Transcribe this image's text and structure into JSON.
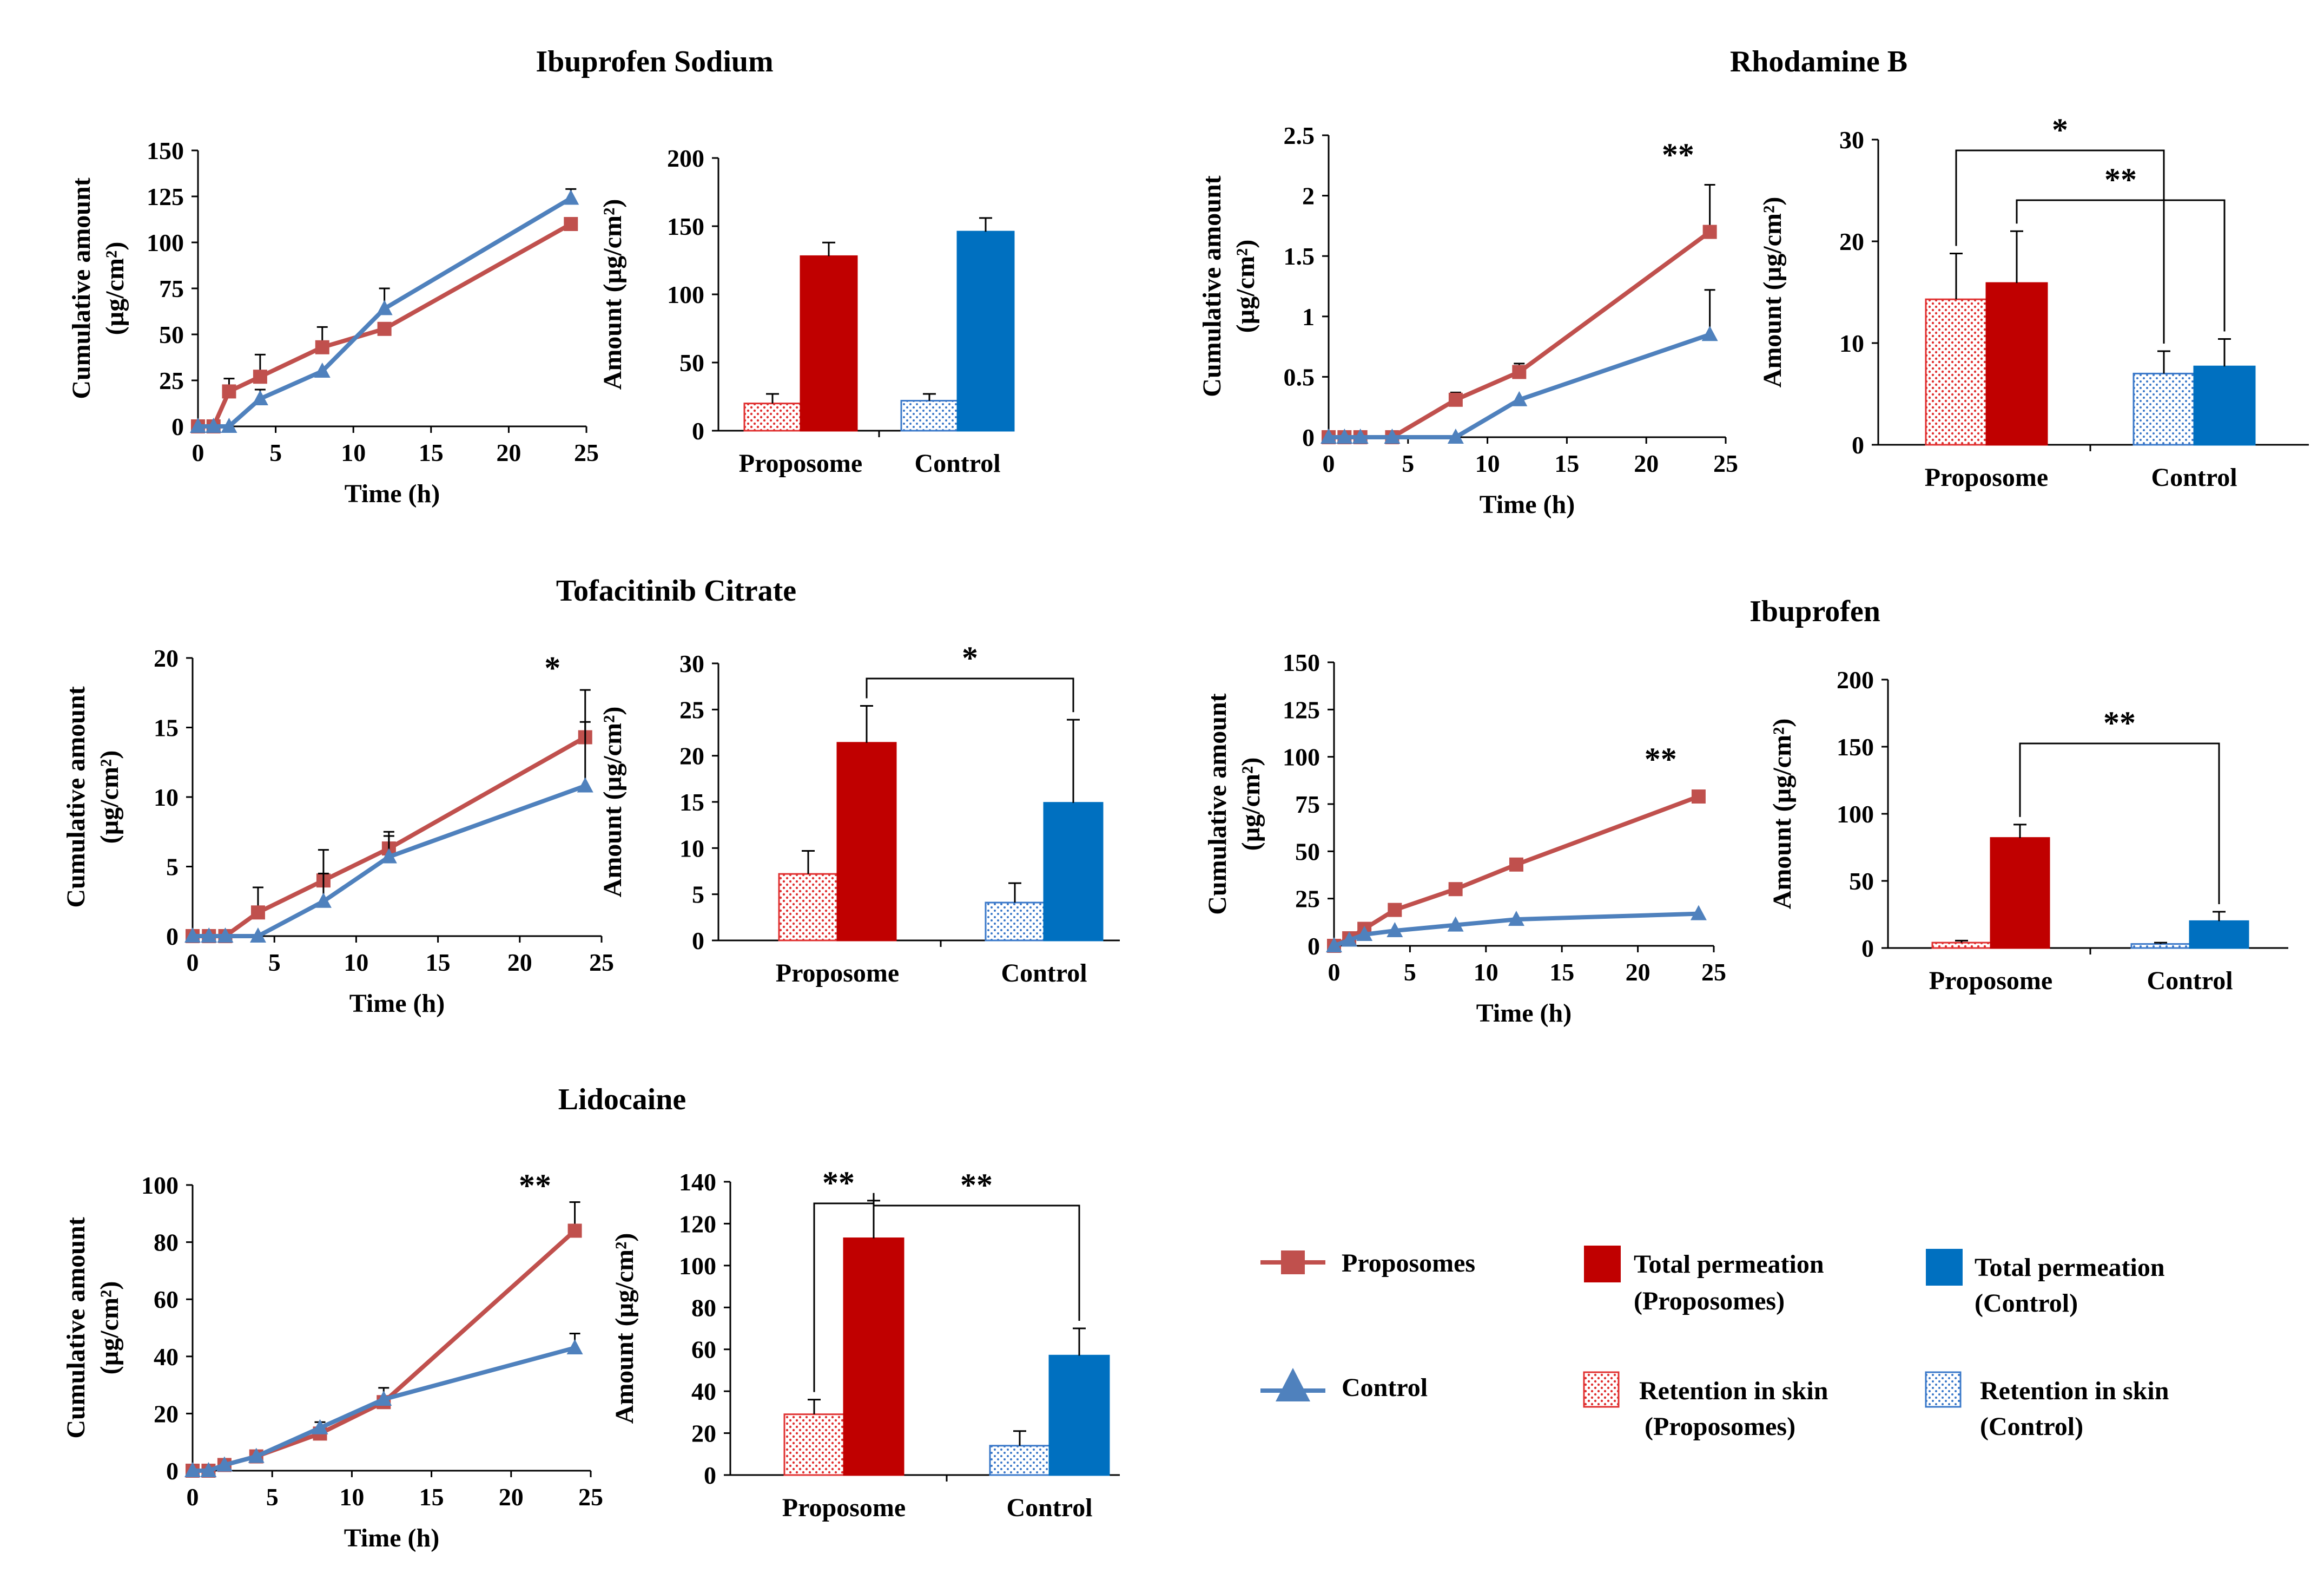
{
  "chart_data": [
    {
      "id": "ibuprofen_sodium",
      "title": "Ibuprofen Sodium",
      "line": {
        "type": "line",
        "xlabel": "Time (h)",
        "ylabel": "Cumulative amount",
        "ylabel2": "(µg/cm²)",
        "xlim": [
          0,
          25
        ],
        "xticks": [
          "0",
          "5",
          "10",
          "15",
          "20",
          "25"
        ],
        "ylim": [
          0,
          150
        ],
        "yticks": [
          "0",
          "25",
          "50",
          "75",
          "100",
          "125",
          "150"
        ],
        "series": [
          {
            "name": "Proposomes",
            "x": [
              0,
              1,
              2,
              4,
              8,
              12,
              24
            ],
            "y": [
              0,
              0,
              19,
              27,
              43,
              53,
              110
            ],
            "err": [
              0,
              0,
              7,
              12,
              11,
              0,
              0
            ]
          },
          {
            "name": "Control",
            "x": [
              0,
              1,
              2,
              4,
              8,
              12,
              24
            ],
            "y": [
              0,
              0,
              0,
              15,
              30,
              64,
              124
            ],
            "err": [
              0,
              0,
              0,
              5,
              0,
              11,
              5
            ]
          }
        ],
        "annotations": []
      },
      "bar": {
        "type": "bar",
        "ylabel": "Amount (µg/cm²)",
        "ylim": [
          0,
          200
        ],
        "yticks": [
          "0",
          "50",
          "100",
          "150",
          "200"
        ],
        "categories": [
          "Proposome",
          "Control"
        ],
        "series": [
          {
            "name": "Retention in skin",
            "values": [
              20,
              22
            ],
            "err": [
              7,
              5
            ]
          },
          {
            "name": "Total permeation",
            "values": [
              128,
              146
            ],
            "err": [
              10,
              10
            ]
          }
        ],
        "annotations": []
      }
    },
    {
      "id": "rhodamine_b",
      "title": "Rhodamine B",
      "line": {
        "type": "line",
        "xlabel": "Time (h)",
        "ylabel": "Cumulative amount",
        "ylabel2": "(µg/cm²)",
        "xlim": [
          0,
          25
        ],
        "xticks": [
          "0",
          "5",
          "10",
          "15",
          "20",
          "25"
        ],
        "ylim": [
          0,
          2.5
        ],
        "yticks": [
          "0",
          "0.5",
          "1",
          "1.5",
          "2",
          "2.5"
        ],
        "series": [
          {
            "name": "Proposomes",
            "x": [
              0,
              1,
              2,
              4,
              8,
              12,
              24
            ],
            "y": [
              0,
              0,
              0,
              0,
              0.31,
              0.54,
              1.7
            ],
            "err": [
              0,
              0,
              0,
              0,
              0.06,
              0.07,
              0.39
            ]
          },
          {
            "name": "Control",
            "x": [
              0,
              1,
              2,
              4,
              8,
              12,
              24
            ],
            "y": [
              0,
              0,
              0,
              0,
              0,
              0.31,
              0.85
            ],
            "err": [
              0,
              0,
              0,
              0,
              0,
              0,
              0.37
            ]
          }
        ],
        "annotations": [
          {
            "text": "**",
            "x": 22,
            "y": 2.25
          }
        ]
      },
      "bar": {
        "type": "bar",
        "ylabel": "Amount (µg/cm²)",
        "ylim": [
          0,
          30
        ],
        "yticks": [
          "0",
          "10",
          "20",
          "30"
        ],
        "categories": [
          "Proposome",
          "Control"
        ],
        "series": [
          {
            "name": "Retention in skin",
            "values": [
              14.3,
              7.0
            ],
            "err": [
              4.5,
              2.2
            ]
          },
          {
            "name": "Total permeation",
            "values": [
              15.9,
              7.7
            ],
            "err": [
              5.1,
              2.7
            ]
          }
        ],
        "annotations": [
          {
            "text": "*"
          },
          {
            "text": "**"
          }
        ]
      }
    },
    {
      "id": "tofacitinib_citrate",
      "title": "Tofacitinib Citrate",
      "line": {
        "type": "line",
        "xlabel": "Time (h)",
        "ylabel": "Cumulative amount",
        "ylabel2": "(µg/cm²)",
        "xlim": [
          0,
          25
        ],
        "xticks": [
          "0",
          "5",
          "10",
          "15",
          "20",
          "25"
        ],
        "ylim": [
          0,
          20
        ],
        "yticks": [
          "0",
          "5",
          "10",
          "15",
          "20"
        ],
        "series": [
          {
            "name": "Proposomes",
            "x": [
              0,
              1,
              2,
              4,
              8,
              12,
              24
            ],
            "y": [
              0,
              0,
              0,
              1.7,
              4.0,
              6.3,
              14.3
            ],
            "err": [
              0,
              0,
              0,
              1.8,
              2.2,
              1.2,
              3.4
            ]
          },
          {
            "name": "Control",
            "x": [
              0,
              1,
              2,
              4,
              8,
              12,
              24
            ],
            "y": [
              0,
              0,
              0,
              0,
              2.5,
              5.7,
              10.8
            ],
            "err": [
              0,
              0,
              0,
              0,
              2.0,
              1.5,
              4.6
            ]
          }
        ],
        "annotations": [
          {
            "text": "*",
            "x": 22,
            "y": 18.5
          }
        ]
      },
      "bar": {
        "type": "bar",
        "ylabel": "Amount (µg/cm²)",
        "ylim": [
          0,
          30
        ],
        "yticks": [
          "0",
          "5",
          "10",
          "15",
          "20",
          "25",
          "30"
        ],
        "categories": [
          "Proposome",
          "Control"
        ],
        "series": [
          {
            "name": "Retention in skin",
            "values": [
              7.2,
              4.1
            ],
            "err": [
              2.5,
              2.1
            ]
          },
          {
            "name": "Total permeation",
            "values": [
              21.4,
              14.9
            ],
            "err": [
              4.0,
              9.0
            ]
          }
        ],
        "annotations": [
          {
            "text": "*"
          }
        ]
      }
    },
    {
      "id": "ibuprofen",
      "title": "Ibuprofen",
      "line": {
        "type": "line",
        "xlabel": "Time (h)",
        "ylabel": "Cumulative amount",
        "ylabel2": "(µg/cm²)",
        "xlim": [
          0,
          25
        ],
        "xticks": [
          "0",
          "5",
          "10",
          "15",
          "20",
          "25"
        ],
        "ylim": [
          0,
          150
        ],
        "yticks": [
          "0",
          "25",
          "50",
          "75",
          "100",
          "125",
          "150"
        ],
        "series": [
          {
            "name": "Proposomes",
            "x": [
              0,
              1,
              2,
              4,
              8,
              12,
              24
            ],
            "y": [
              0,
              4,
              9,
              19,
              30,
              43,
              79
            ],
            "err": [
              0,
              0,
              0,
              0,
              0,
              0,
              0
            ]
          },
          {
            "name": "Control",
            "x": [
              0,
              1,
              2,
              4,
              8,
              12,
              24
            ],
            "y": [
              0,
              3,
              6,
              8,
              11,
              14,
              17
            ],
            "err": [
              0,
              0,
              0,
              0,
              0,
              0,
              0
            ]
          }
        ],
        "annotations": [
          {
            "text": "**",
            "x": 21.5,
            "y": 93
          }
        ]
      },
      "bar": {
        "type": "bar",
        "ylabel": "Amount (µg/cm²)",
        "ylim": [
          0,
          200
        ],
        "yticks": [
          "0",
          "50",
          "100",
          "150",
          "200"
        ],
        "categories": [
          "Proposome",
          "Control"
        ],
        "series": [
          {
            "name": "Retention in skin",
            "values": [
              4,
              3
            ],
            "err": [
              1.5,
              1
            ]
          },
          {
            "name": "Total permeation",
            "values": [
              82,
              20
            ],
            "err": [
              10,
              7
            ]
          }
        ],
        "annotations": [
          {
            "text": "**"
          }
        ]
      }
    },
    {
      "id": "lidocaine",
      "title": "Lidocaine",
      "line": {
        "type": "line",
        "xlabel": "Time (h)",
        "ylabel": "Cumulative amount",
        "ylabel2": "(µg/cm²)",
        "xlim": [
          0,
          25
        ],
        "xticks": [
          "0",
          "5",
          "10",
          "15",
          "20",
          "25"
        ],
        "ylim": [
          0,
          100
        ],
        "yticks": [
          "0",
          "20",
          "40",
          "60",
          "80",
          "100"
        ],
        "series": [
          {
            "name": "Proposomes",
            "x": [
              0,
              1,
              2,
              4,
              8,
              12,
              24
            ],
            "y": [
              0,
              0,
              2,
              5,
              13,
              24,
              84
            ],
            "err": [
              0,
              0,
              0,
              0,
              2,
              2,
              10
            ]
          },
          {
            "name": "Control",
            "x": [
              0,
              1,
              2,
              4,
              8,
              12,
              24
            ],
            "y": [
              0,
              0,
              2,
              5,
              15,
              25,
              43
            ],
            "err": [
              0,
              0,
              0,
              0,
              2,
              4,
              5
            ]
          }
        ],
        "annotations": [
          {
            "text": "**",
            "x": 21.5,
            "y": 96
          }
        ]
      },
      "bar": {
        "type": "bar",
        "ylabel": "Amount (µg/cm²)",
        "ylim": [
          0,
          140
        ],
        "yticks": [
          "0",
          "20",
          "40",
          "60",
          "80",
          "100",
          "120",
          "140"
        ],
        "categories": [
          "Proposome",
          "Control"
        ],
        "series": [
          {
            "name": "Retention in skin",
            "values": [
              29,
              14
            ],
            "err": [
              7,
              7
            ]
          },
          {
            "name": "Total permeation",
            "values": [
              113,
              57
            ],
            "err": [
              18,
              13
            ]
          }
        ],
        "annotations": [
          {
            "text": "**"
          },
          {
            "text": "**"
          }
        ]
      }
    }
  ],
  "legend": {
    "proposomes_line": "Proposomes",
    "control_line": "Control",
    "total_proposomes_1": "Total permeation",
    "total_proposomes_2": "(Proposomes)",
    "total_control_1": "Total permeation",
    "total_control_2": "(Control)",
    "retention_proposomes_1": "Retention in skin",
    "retention_proposomes_2": "(Proposomes)",
    "retention_control_1": "Retention in skin",
    "retention_control_2": "(Control)"
  },
  "colors": {
    "proposomes_line": "#C0504D",
    "control_line": "#4F81BD",
    "proposomes_bar": "#C00000",
    "control_bar": "#0070C0",
    "retention_proposomes_dots": "#E03030",
    "retention_control_dots": "#3A78C9",
    "axis": "#000000"
  }
}
